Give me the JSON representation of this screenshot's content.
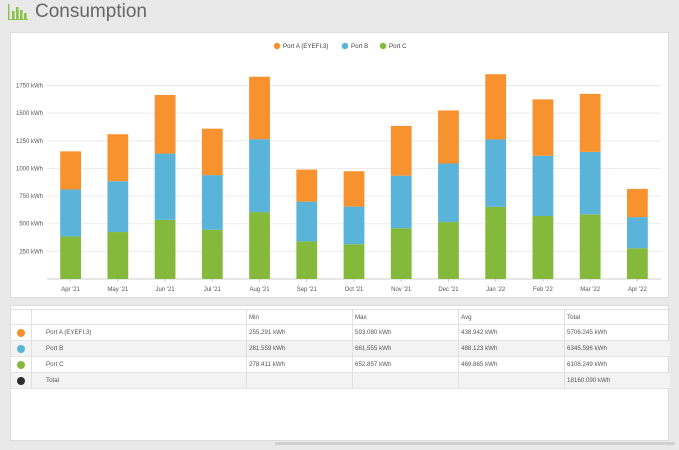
{
  "page": {
    "title": "Consumption",
    "icon": "bar-chart-icon",
    "accent": "#8bc34a"
  },
  "chart_data": {
    "type": "bar",
    "stacked": true,
    "categories": [
      "Apr '21",
      "May '21",
      "Jun '21",
      "Jul '21",
      "Aug '21",
      "Sep '21",
      "Oct '21",
      "Nov '21",
      "Dec '21",
      "Jan '22",
      "Feb '22",
      "Mar '22",
      "Apr '22"
    ],
    "series": [
      {
        "name": "Port A (EYEFI.3)",
        "color": "#f7922e",
        "values": [
          345,
          425,
          530,
          420,
          565,
          290,
          320,
          450,
          480,
          590,
          510,
          525,
          255
        ]
      },
      {
        "name": "Port B",
        "color": "#5ab3d9",
        "values": [
          425,
          460,
          600,
          495,
          660,
          360,
          340,
          475,
          530,
          610,
          545,
          565,
          282
        ]
      },
      {
        "name": "Port C",
        "color": "#85b93c",
        "values": [
          385,
          425,
          535,
          445,
          605,
          340,
          315,
          460,
          515,
          653,
          570,
          585,
          278
        ]
      }
    ],
    "ylim": [
      0,
      1900
    ],
    "yticks": [
      250,
      500,
      750,
      1000,
      1250,
      1500,
      1750
    ],
    "ytick_labels": [
      "250 kWh",
      "500 kWh",
      "750 kWh",
      "1000 kWh",
      "1250 kWh",
      "1500 kWh",
      "1750 kWh"
    ],
    "legend_position": "top-center",
    "grid": true
  },
  "table": {
    "columns": [
      "",
      "Min",
      "Max",
      "Avg",
      "Total"
    ],
    "rows": [
      {
        "name": "Port A (EYEFI.3)",
        "color": "#f7922e",
        "min": "255.291 kWh",
        "max": "593.080 kWh",
        "avg": "438.942 kWh",
        "total": "5706.245 kWh"
      },
      {
        "name": "Port B",
        "color": "#5ab3d9",
        "min": "281.559 kWh",
        "max": "661.555 kWh",
        "avg": "488.123 kWh",
        "total": "6345.596 kWh"
      },
      {
        "name": "Port C",
        "color": "#85b93c",
        "min": "278.411 kWh",
        "max": "652.857 kWh",
        "avg": "469.865 kWh",
        "total": "6108.249 kWh"
      },
      {
        "name": "Total",
        "color": "#2c2c2c",
        "min": "",
        "max": "",
        "avg": "",
        "total": "18160.090 kWh"
      }
    ]
  }
}
